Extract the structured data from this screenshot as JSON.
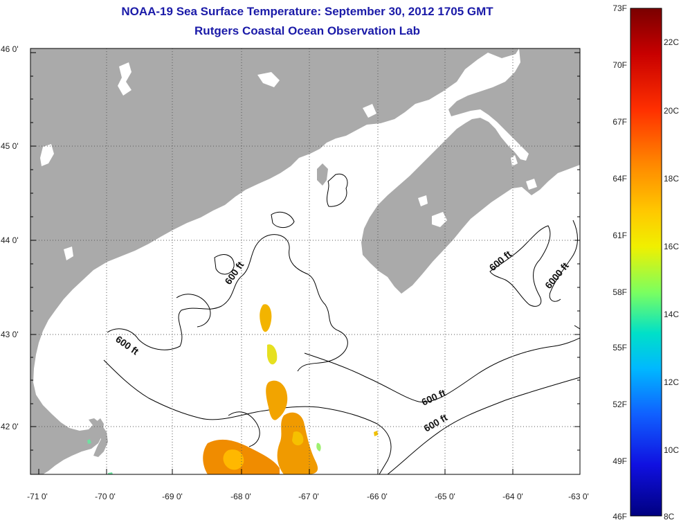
{
  "header": {
    "title": "NOAA-19 Sea Surface Temperature:  September 30, 2012 1705 GMT",
    "subtitle": "Rutgers Coastal Ocean Observation Lab"
  },
  "map": {
    "lat_range": [
      41.5,
      46.0
    ],
    "lon_range": [
      -71.0,
      -63.0
    ],
    "lat_ticks": [
      "46 0'",
      "45 0'",
      "44 0'",
      "43 0'",
      "42 0'"
    ],
    "lon_ticks": [
      "-71 0'",
      "-70 0'",
      "-69 0'",
      "-68 0'",
      "-67 0'",
      "-66 0'",
      "-65 0'",
      "-64 0'",
      "-63 0'"
    ],
    "land_color": "#aaaaaa",
    "contour_labels": [
      "600 ft",
      "600 ft",
      "600 ft",
      "600 ft",
      "600 ft",
      "6000 ft"
    ]
  },
  "colorbar": {
    "fahrenheit_labels": [
      "73F",
      "70F",
      "67F",
      "64F",
      "61F",
      "58F",
      "55F",
      "52F",
      "49F",
      "46F"
    ],
    "celsius_labels": [
      "22C",
      "20C",
      "18C",
      "16C",
      "14C",
      "12C",
      "10C",
      "8C"
    ],
    "colors": [
      "#7a0000",
      "#c80000",
      "#ff3000",
      "#ff8a00",
      "#ffc800",
      "#f0f000",
      "#7aff60",
      "#00e0c8",
      "#00b8ff",
      "#1060ff",
      "#1010e0",
      "#000080"
    ]
  }
}
